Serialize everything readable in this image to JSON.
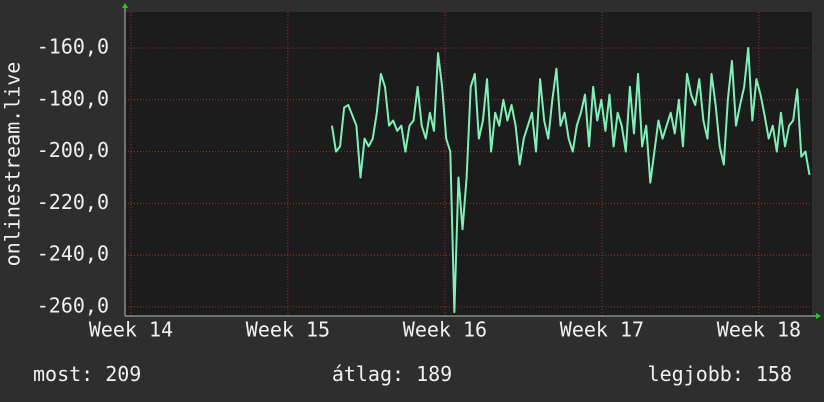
{
  "chart_data": {
    "type": "line",
    "y_label": "onlinestream.live",
    "xlim": [
      13.962,
      18.338
    ],
    "xticks": [
      {
        "value": 14,
        "label": "Week 14"
      },
      {
        "value": 15,
        "label": "Week 15"
      },
      {
        "value": 16,
        "label": "Week 16"
      },
      {
        "value": 17,
        "label": "Week 17"
      },
      {
        "value": 18,
        "label": "Week 18"
      }
    ],
    "ylim": [
      -263.5,
      -146.1
    ],
    "yticks": [
      {
        "value": -260,
        "label": "-260,0"
      },
      {
        "value": -240,
        "label": "-240,0"
      },
      {
        "value": -220,
        "label": "-220,0"
      },
      {
        "value": -200,
        "label": "-200,0"
      },
      {
        "value": -180,
        "label": "-180,0"
      },
      {
        "value": -160,
        "label": "-160,0"
      }
    ],
    "grid": true,
    "grid_color": "#a03030",
    "series": [
      {
        "color": "#7ff0b8",
        "x": [
          15.28,
          15.306,
          15.332,
          15.358,
          15.384,
          15.41,
          15.436,
          15.462,
          15.488,
          15.514,
          15.54,
          15.566,
          15.592,
          15.618,
          15.644,
          15.67,
          15.696,
          15.722,
          15.748,
          15.774,
          15.8,
          15.826,
          15.852,
          15.878,
          15.904,
          15.93,
          15.956,
          15.982,
          16.008,
          16.034,
          16.06,
          16.086,
          16.112,
          16.138,
          16.164,
          16.19,
          16.216,
          16.242,
          16.268,
          16.294,
          16.32,
          16.346,
          16.372,
          16.398,
          16.424,
          16.45,
          16.476,
          16.502,
          16.528,
          16.554,
          16.58,
          16.606,
          16.632,
          16.658,
          16.684,
          16.71,
          16.736,
          16.762,
          16.788,
          16.814,
          16.84,
          16.866,
          16.892,
          16.918,
          16.944,
          16.97,
          16.996,
          17.022,
          17.048,
          17.074,
          17.1,
          17.126,
          17.152,
          17.178,
          17.204,
          17.23,
          17.256,
          17.282,
          17.308,
          17.334,
          17.36,
          17.386,
          17.412,
          17.438,
          17.464,
          17.49,
          17.516,
          17.542,
          17.568,
          17.594,
          17.62,
          17.646,
          17.672,
          17.698,
          17.724,
          17.75,
          17.776,
          17.802,
          17.828,
          17.854,
          17.88,
          17.906,
          17.932,
          17.958,
          17.984,
          18.01,
          18.036,
          18.062,
          18.088,
          18.114,
          18.14,
          18.166,
          18.192,
          18.218,
          18.244,
          18.27,
          18.296,
          18.322
        ],
        "values": [
          -190,
          -200,
          -198,
          -183,
          -182,
          -186,
          -190,
          -210,
          -195,
          -198,
          -195,
          -185,
          -170,
          -175,
          -190,
          -188,
          -192,
          -190,
          -200,
          -190,
          -188,
          -175,
          -190,
          -195,
          -185,
          -192,
          -162,
          -175,
          -195,
          -200,
          -262,
          -210,
          -230,
          -210,
          -175,
          -170,
          -195,
          -188,
          -172,
          -200,
          -185,
          -190,
          -180,
          -188,
          -182,
          -190,
          -205,
          -195,
          -190,
          -185,
          -200,
          -172,
          -188,
          -195,
          -180,
          -168,
          -190,
          -185,
          -195,
          -200,
          -190,
          -185,
          -178,
          -198,
          -175,
          -188,
          -180,
          -192,
          -178,
          -198,
          -185,
          -190,
          -200,
          -175,
          -193,
          -170,
          -198,
          -190,
          -212,
          -200,
          -188,
          -195,
          -190,
          -185,
          -193,
          -180,
          -198,
          -170,
          -178,
          -182,
          -172,
          -188,
          -195,
          -170,
          -182,
          -198,
          -205,
          -180,
          -165,
          -190,
          -182,
          -175,
          -160,
          -188,
          -172,
          -178,
          -186,
          -195,
          -190,
          -200,
          -185,
          -198,
          -190,
          -188,
          -176,
          -202,
          -200,
          -209
        ]
      }
    ],
    "footer": [
      {
        "label": "most:",
        "value": 209
      },
      {
        "label": "átlag:",
        "value": 189
      },
      {
        "label": "legjobb:",
        "value": 158
      }
    ]
  }
}
